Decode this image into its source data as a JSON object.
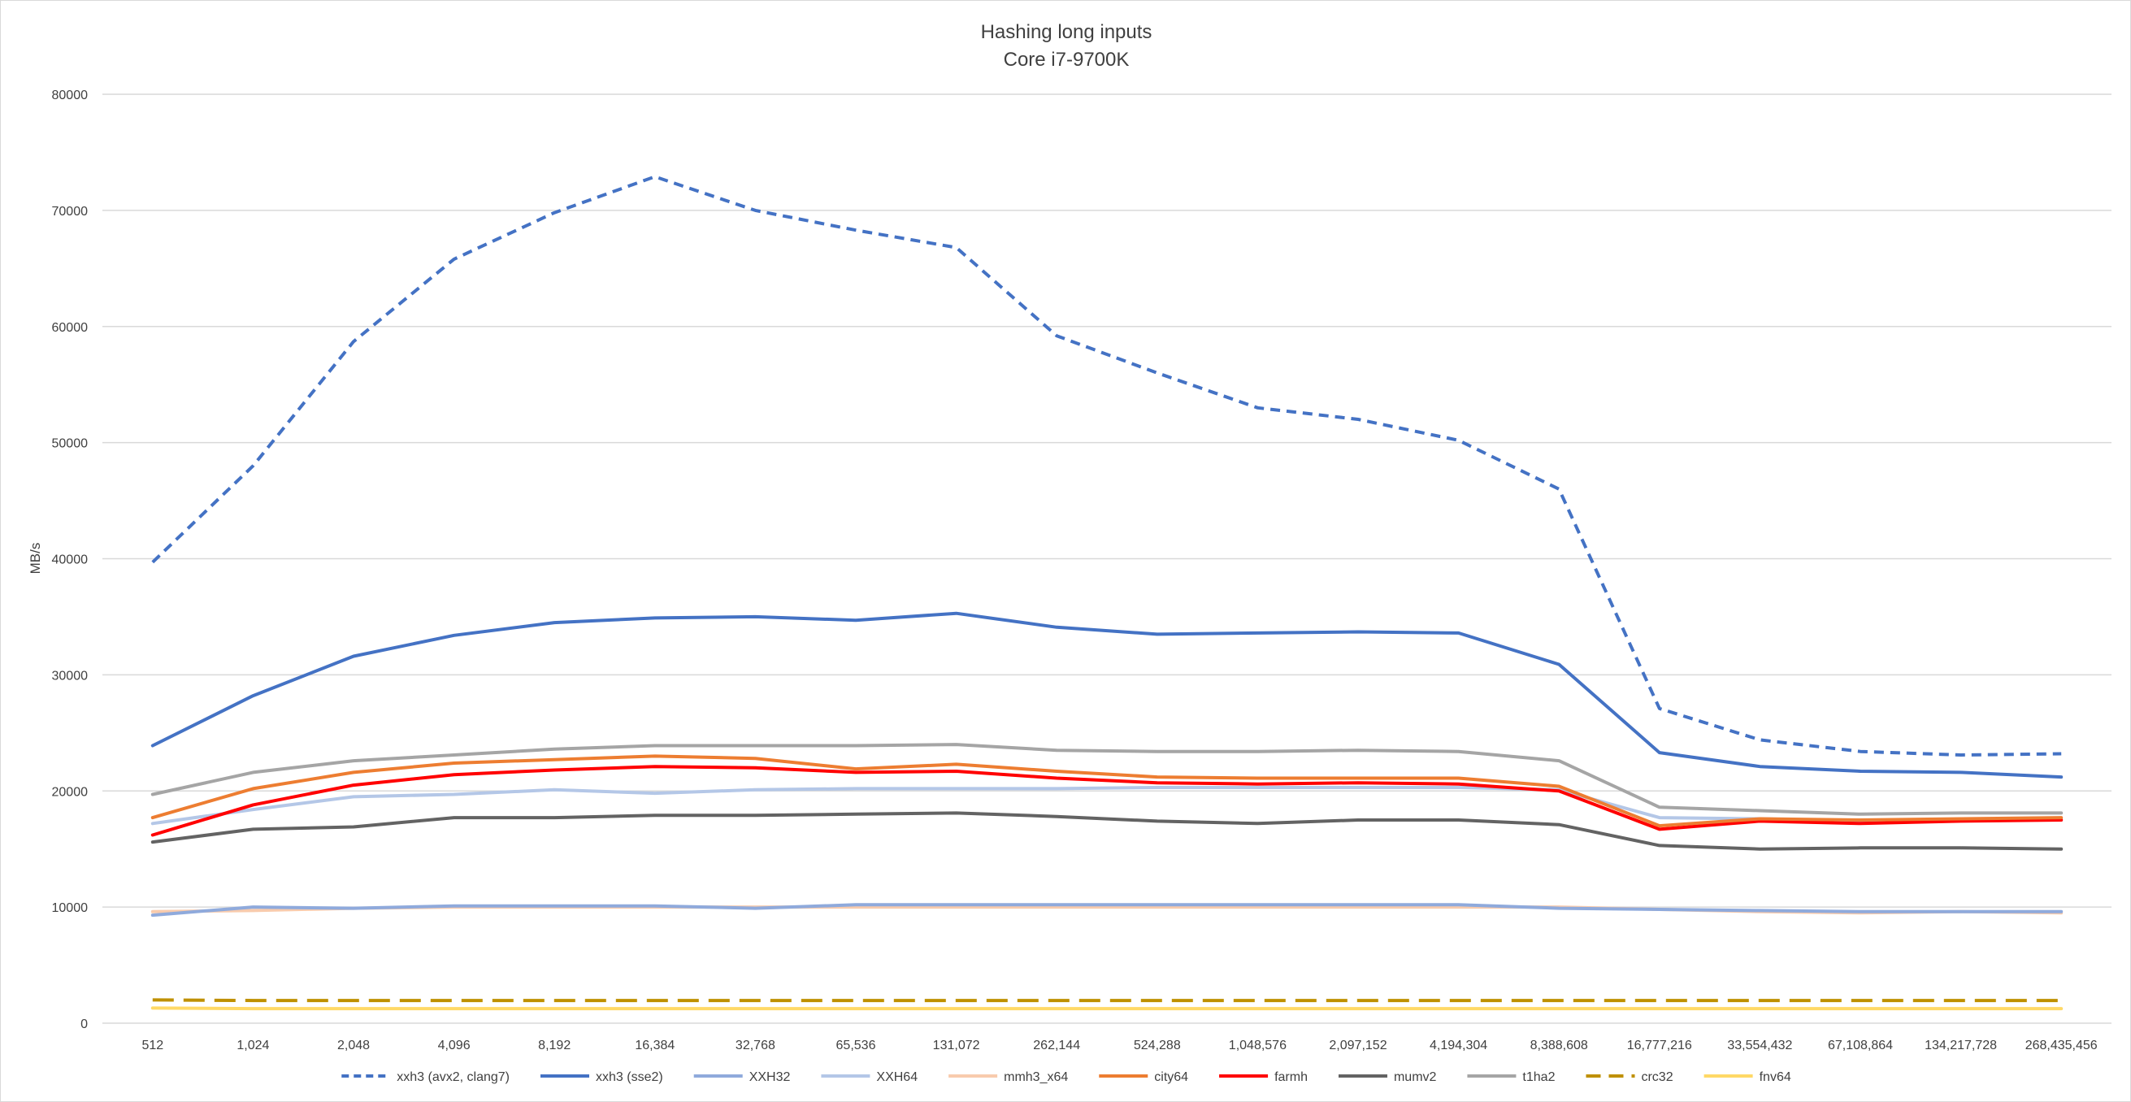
{
  "chart_data": {
    "type": "line",
    "title": "Hashing long inputs",
    "subtitle": "Core i7-9700K",
    "xlabel": "",
    "ylabel": "MB/s",
    "ylim": [
      0,
      80000
    ],
    "yticks": [
      0,
      10000,
      20000,
      30000,
      40000,
      50000,
      60000,
      70000,
      80000
    ],
    "ytick_labels": [
      "0",
      "10000",
      "20000",
      "30000",
      "40000",
      "50000",
      "60000",
      "70000",
      "80000"
    ],
    "grid": true,
    "legend_position": "bottom",
    "categories": [
      "512",
      "1,024",
      "2,048",
      "4,096",
      "8,192",
      "16,384",
      "32,768",
      "65,536",
      "131,072",
      "262,144",
      "524,288",
      "1,048,576",
      "2,097,152",
      "4,194,304",
      "8,388,608",
      "16,777,216",
      "33,554,432",
      "67,108,864",
      "134,217,728",
      "268,435,456"
    ],
    "series": [
      {
        "name": "xxh3 (avx2, clang7)",
        "color": "#4472c4",
        "dash": "dash",
        "width": 4,
        "values": [
          39700,
          48000,
          58700,
          65800,
          69800,
          72900,
          70000,
          68300,
          66800,
          59200,
          56000,
          53000,
          52000,
          50200,
          46000,
          27100,
          24400,
          23400,
          23100,
          23200
        ]
      },
      {
        "name": "xxh3 (sse2)",
        "color": "#4472c4",
        "dash": "solid",
        "width": 4,
        "values": [
          23900,
          28200,
          31600,
          33400,
          34500,
          34900,
          35000,
          34700,
          35300,
          34100,
          33500,
          33600,
          33700,
          33600,
          30900,
          23300,
          22100,
          21700,
          21600,
          21200
        ]
      },
      {
        "name": "XXH32",
        "color": "#8faadc",
        "dash": "solid",
        "width": 4,
        "values": [
          9300,
          10000,
          9900,
          10100,
          10100,
          10100,
          9900,
          10200,
          10200,
          10200,
          10200,
          10200,
          10200,
          10200,
          9900,
          9800,
          9700,
          9600,
          9600,
          9600
        ]
      },
      {
        "name": "XXH64",
        "color": "#b4c7e7",
        "dash": "solid",
        "width": 4,
        "values": [
          17200,
          18400,
          19500,
          19700,
          20100,
          19800,
          20100,
          20200,
          20200,
          20200,
          20300,
          20300,
          20300,
          20300,
          20100,
          17700,
          17600,
          17400,
          17500,
          17500
        ]
      },
      {
        "name": "mmh3_x64",
        "color": "#f8cbad",
        "dash": "solid",
        "width": 4,
        "values": [
          9600,
          9700,
          9900,
          10000,
          10000,
          10000,
          10000,
          10000,
          10000,
          10000,
          10000,
          10000,
          10000,
          10000,
          10000,
          9800,
          9600,
          9500,
          9600,
          9500
        ]
      },
      {
        "name": "city64",
        "color": "#ed7d31",
        "dash": "solid",
        "width": 4,
        "values": [
          17700,
          20200,
          21600,
          22400,
          22700,
          23000,
          22800,
          21900,
          22300,
          21700,
          21200,
          21100,
          21100,
          21100,
          20400,
          17000,
          17600,
          17500,
          17600,
          17700
        ]
      },
      {
        "name": "farmh",
        "color": "#ff0000",
        "dash": "solid",
        "width": 4,
        "values": [
          16200,
          18800,
          20500,
          21400,
          21800,
          22100,
          22000,
          21600,
          21700,
          21100,
          20700,
          20600,
          20700,
          20600,
          20000,
          16700,
          17400,
          17200,
          17400,
          17500
        ]
      },
      {
        "name": "mumv2",
        "color": "#636363",
        "dash": "solid",
        "width": 4,
        "values": [
          15600,
          16700,
          16900,
          17700,
          17700,
          17900,
          17900,
          18000,
          18100,
          17800,
          17400,
          17200,
          17500,
          17500,
          17100,
          15300,
          15000,
          15100,
          15100,
          15000
        ]
      },
      {
        "name": "t1ha2",
        "color": "#a5a5a5",
        "dash": "solid",
        "width": 4,
        "values": [
          19700,
          21600,
          22600,
          23100,
          23600,
          23900,
          23900,
          23900,
          24000,
          23500,
          23400,
          23400,
          23500,
          23400,
          22600,
          18600,
          18300,
          18000,
          18100,
          18100
        ]
      },
      {
        "name": "crc32",
        "color": "#bf9000",
        "dash": "longdash",
        "width": 4,
        "values": [
          2000,
          1950,
          1950,
          1950,
          1950,
          1950,
          1950,
          1950,
          1950,
          1950,
          1950,
          1950,
          1950,
          1950,
          1950,
          1950,
          1950,
          1950,
          1950,
          1950
        ]
      },
      {
        "name": "fnv64",
        "color": "#ffd966",
        "dash": "solid",
        "width": 4,
        "values": [
          1300,
          1250,
          1250,
          1250,
          1250,
          1250,
          1250,
          1250,
          1250,
          1250,
          1250,
          1250,
          1250,
          1250,
          1250,
          1250,
          1250,
          1250,
          1250,
          1250
        ]
      }
    ]
  },
  "colors": {
    "gridline": "#d9d9d9",
    "text": "#404040",
    "frame": "#d9d9d9"
  }
}
